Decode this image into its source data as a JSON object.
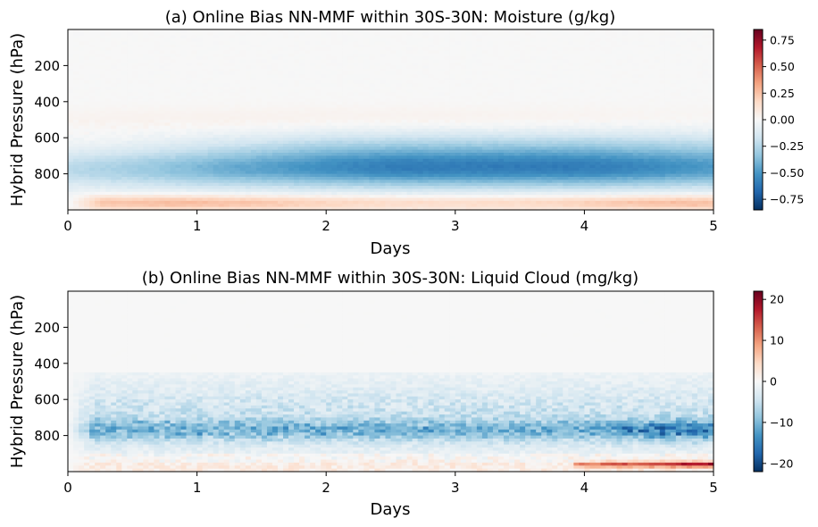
{
  "chart_data": [
    {
      "type": "heatmap",
      "title": "(a) Online Bias NN-MMF within 30S-30N: Moisture (g/kg)",
      "xlabel": "Days",
      "ylabel": "Hybrid Pressure (hPa)",
      "xlim": [
        0,
        5
      ],
      "ylim": [
        1000,
        0
      ],
      "y_inverted": true,
      "xticks": [
        "0",
        "1",
        "2",
        "3",
        "4",
        "5"
      ],
      "yticks": [
        "200",
        "400",
        "600",
        "800"
      ],
      "colormap": "RdBu_r",
      "clim": [
        -0.85,
        0.85
      ],
      "colorbar_ticks": [
        "0.75",
        "0.50",
        "0.25",
        "0.00",
        "−0.25",
        "−0.50",
        "−0.75"
      ],
      "anomaly_features": [
        {
          "description": "negative band",
          "center_pressure": 775,
          "halfwidth": 95,
          "peak_value": -0.55,
          "peak_day": 3.3
        },
        {
          "description": "near-surface positive band",
          "center_pressure": 960,
          "halfwidth": 30,
          "peak_value": 0.28
        },
        {
          "description": "weak positive band aloft",
          "center_pressure": 500,
          "halfwidth": 50,
          "peak_value": 0.04
        }
      ]
    },
    {
      "type": "heatmap",
      "title": "(b) Online Bias NN-MMF within 30S-30N: Liquid Cloud (mg/kg)",
      "xlabel": "Days",
      "ylabel": "Hybrid Pressure (hPa)",
      "xlim": [
        0,
        5
      ],
      "ylim": [
        1000,
        0
      ],
      "y_inverted": true,
      "xticks": [
        "0",
        "1",
        "2",
        "3",
        "4",
        "5"
      ],
      "yticks": [
        "200",
        "400",
        "600",
        "800"
      ],
      "colormap": "RdBu_r",
      "clim": [
        -22,
        22
      ],
      "colorbar_ticks": [
        "20",
        "10",
        "0",
        "−10",
        "−20"
      ],
      "anomaly_features": [
        {
          "description": "negative band",
          "center_pressure": 770,
          "halfwidth": 70,
          "peak_value": -15,
          "peak_day": 4.7
        },
        {
          "description": "broad weak negative region",
          "pressure_range": [
            450,
            950
          ],
          "value": -4
        },
        {
          "description": "near-surface positive streak",
          "center_pressure": 960,
          "day_range": [
            3.9,
            5.0
          ],
          "peak_value": 16
        }
      ]
    }
  ]
}
